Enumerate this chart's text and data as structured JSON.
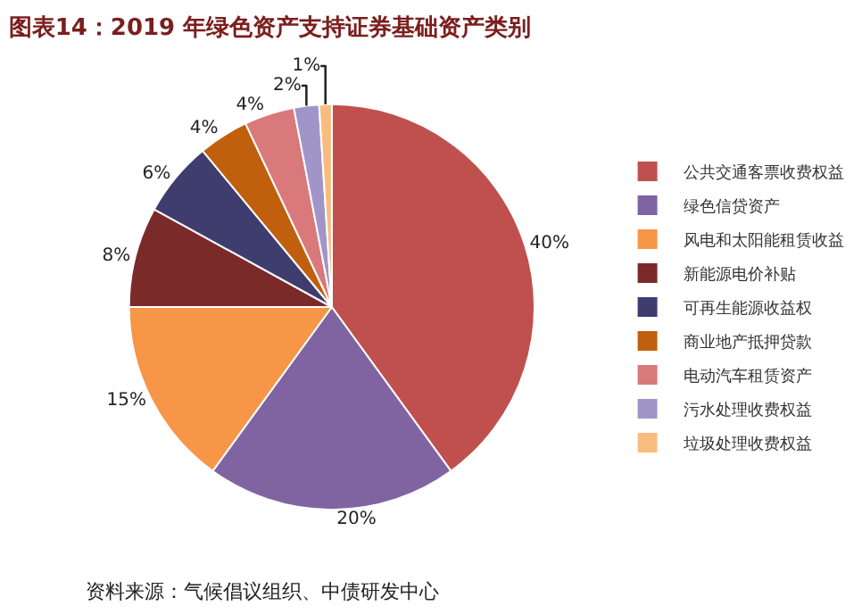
{
  "chart_data": {
    "type": "pie",
    "title": "图表14：2019 年绿色资产支持证券基础资产类别",
    "categories": [
      "公共交通客票收费权益",
      "绿色信贷资产",
      "风电和太阳能租赁收益",
      "新能源电价补贴",
      "可再生能源收益权",
      "商业地产抵押贷款",
      "电动汽车租赁资产",
      "污水处理收费权益",
      "垃圾处理收费权益"
    ],
    "values": [
      40,
      20,
      15,
      8,
      6,
      4,
      4,
      2,
      1
    ],
    "value_labels": [
      "40%",
      "20%",
      "15%",
      "8%",
      "6%",
      "4%",
      "4%",
      "2%",
      "1%"
    ],
    "colors": [
      "#c0504d",
      "#8064a2",
      "#f79646",
      "#7b2a2a",
      "#3f3d6e",
      "#c0600e",
      "#d9797b",
      "#a195c8",
      "#f8bd7e"
    ],
    "legend": "right",
    "annotations": [
      "资料来源：气候倡议组织、中债研发中心"
    ]
  }
}
